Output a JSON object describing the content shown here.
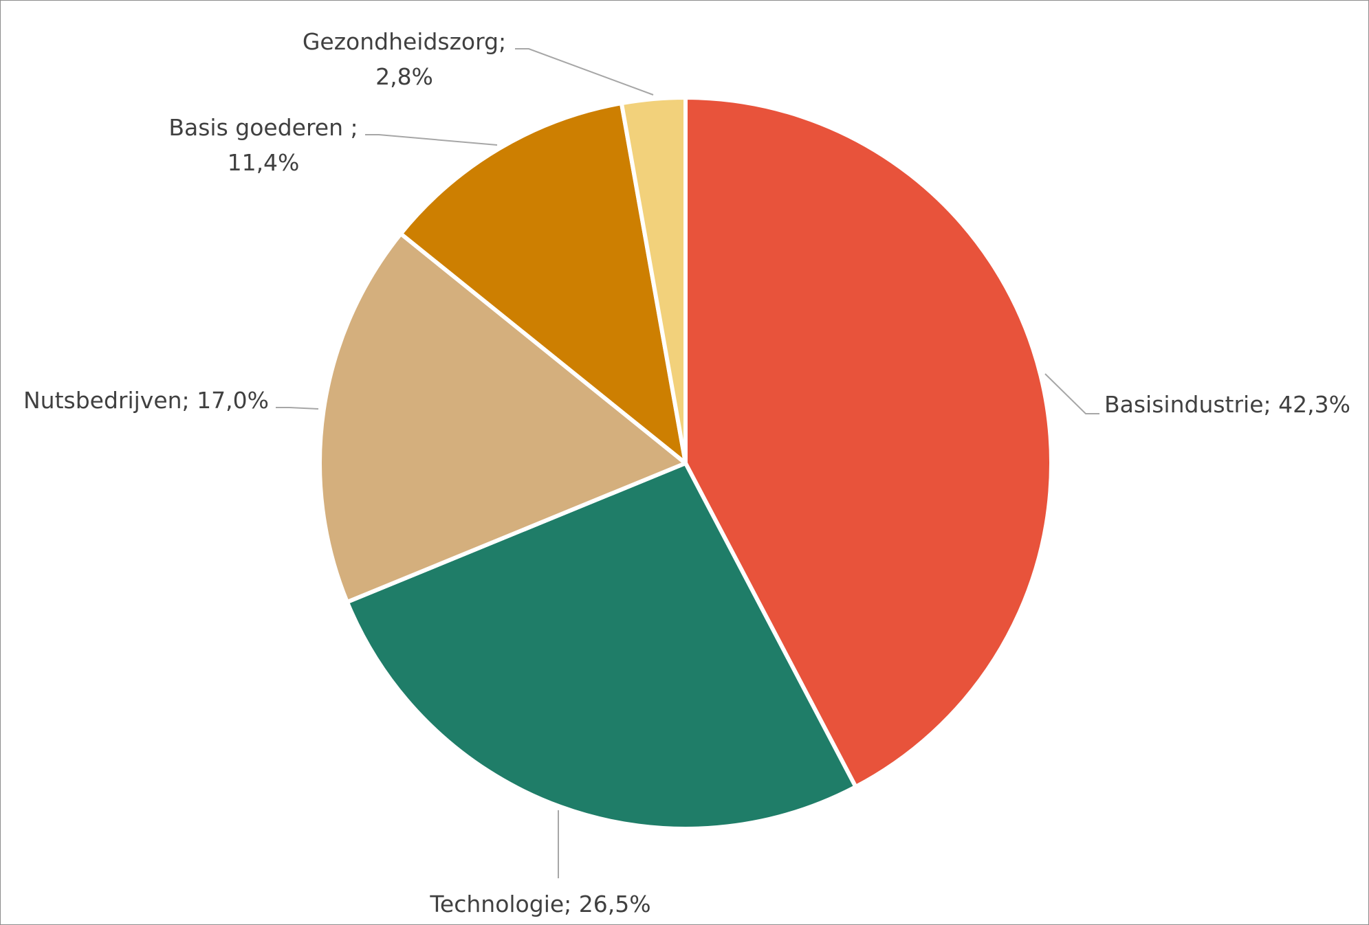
{
  "chart_data": {
    "type": "pie",
    "title": "",
    "start_angle_deg": 0,
    "direction": "clockwise",
    "slices": [
      {
        "label": "Basisindustrie; 42,3%",
        "name": "Basisindustrie",
        "value": 42.3,
        "color": "#E8533B"
      },
      {
        "label": "Technologie; 26,5%",
        "name": "Technologie",
        "value": 26.5,
        "color": "#1F7D68"
      },
      {
        "label": "Nutsbedrijven; 17,0%",
        "name": "Nutsbedrijven",
        "value": 17.0,
        "color": "#D4AF7D"
      },
      {
        "label_lines": [
          "Basis goederen ;",
          "11,4%"
        ],
        "name": "Basis goederen",
        "value": 11.4,
        "color": "#CD7F01"
      },
      {
        "label_lines": [
          "Gezondheidszorg;",
          "2,8%"
        ],
        "name": "Gezondheidszorg",
        "value": 2.8,
        "color": "#F2D17B"
      }
    ],
    "legend": "none",
    "data_labels": "outside with leader lines"
  }
}
